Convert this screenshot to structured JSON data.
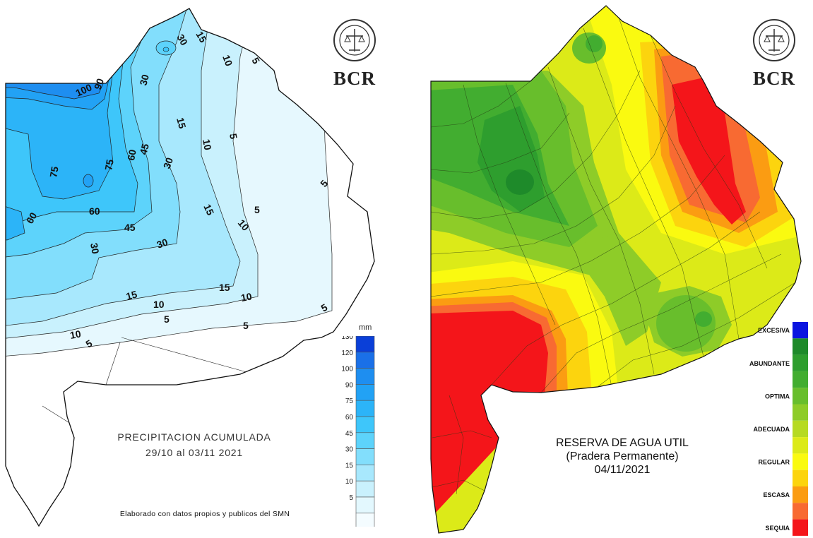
{
  "left_map": {
    "title_line1": "PRECIPITACION  ACUMULADA",
    "title_line2": "29/10  al  03/11  2021",
    "credit": "Elaborado  con  datos  propios  y  publicos  del  SMN",
    "logo_text": "BCR",
    "legend": {
      "unit": "mm",
      "levels": [
        {
          "label": "130",
          "color": "#0a3fd8"
        },
        {
          "label": "120",
          "color": "#1a70e8"
        },
        {
          "label": "100",
          "color": "#1e8ef0"
        },
        {
          "label": "90",
          "color": "#22a2f5"
        },
        {
          "label": "75",
          "color": "#2cb4f8"
        },
        {
          "label": "60",
          "color": "#3ec6fa"
        },
        {
          "label": "45",
          "color": "#5dd3fb"
        },
        {
          "label": "30",
          "color": "#82defc"
        },
        {
          "label": "15",
          "color": "#a8e8fd"
        },
        {
          "label": "10",
          "color": "#c9f1fd"
        },
        {
          "label": "5",
          "color": "#e3f8fe"
        },
        {
          "label": "",
          "color": "#f4fcff"
        }
      ]
    },
    "contour_labels": [
      "100",
      "90",
      "75",
      "60",
      "45",
      "30",
      "15",
      "10",
      "5"
    ]
  },
  "right_map": {
    "title_line1": "RESERVA DE AGUA UTIL",
    "title_line2": "(Pradera Permanente)",
    "title_line3": "04/11/2021",
    "logo_text": "BCR",
    "legend": {
      "levels": [
        {
          "label": "EXCESIVA",
          "color": "#0a14e0"
        },
        {
          "label": "",
          "color": "#1e8a2a"
        },
        {
          "label": "ABUNDANTE",
          "color": "#2e9e2e"
        },
        {
          "label": "",
          "color": "#42ad30"
        },
        {
          "label": "OPTIMA",
          "color": "#68be2c"
        },
        {
          "label": "",
          "color": "#8ecc28"
        },
        {
          "label": "ADECUADA",
          "color": "#b6da22"
        },
        {
          "label": "",
          "color": "#dcea18"
        },
        {
          "label": "REGULAR",
          "color": "#fafa10"
        },
        {
          "label": "",
          "color": "#fcd40e"
        },
        {
          "label": "ESCASA",
          "color": "#fb9c12"
        },
        {
          "label": "",
          "color": "#f86a32"
        },
        {
          "label": "SEQUIA",
          "color": "#f4151a"
        }
      ]
    }
  }
}
